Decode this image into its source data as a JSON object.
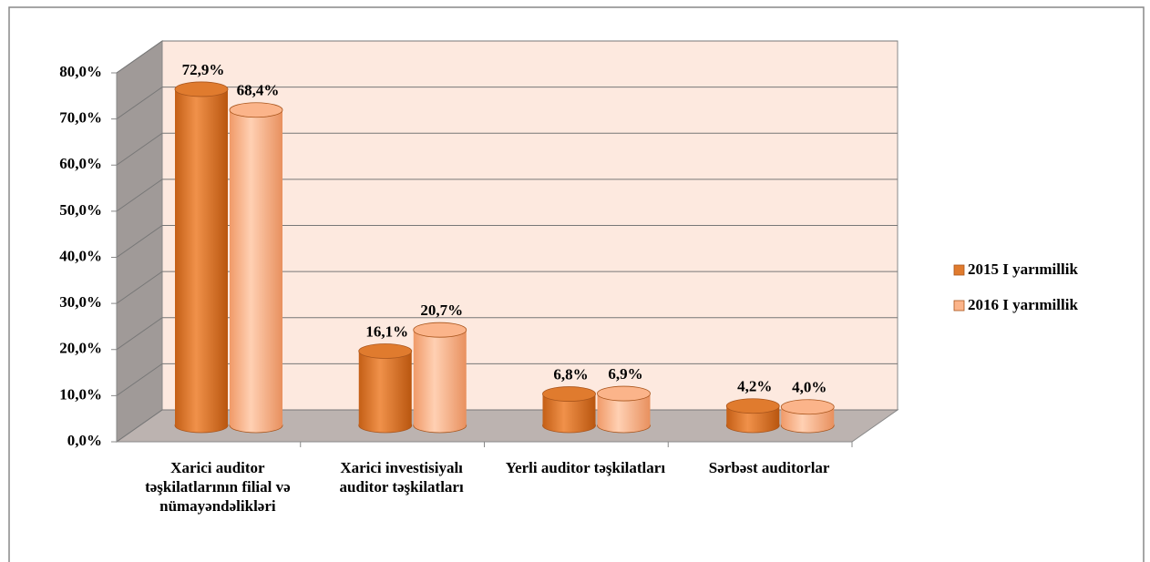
{
  "chart_data": {
    "type": "bar3d",
    "categories": [
      "Xarici auditor təşkilatlarının filial və nümayəndəlikləri",
      "Xarici investisiyalı auditor təşkilatları",
      "Yerli auditor təşkilatları",
      "Sərbəst auditorlar"
    ],
    "series": [
      {
        "name": "2015 I yarımillik",
        "color": "#e07b2e",
        "values": [
          72.9,
          16.1,
          6.8,
          4.2
        ],
        "value_labels": [
          "72,9%",
          "16,1%",
          "6,8%",
          "4,2%"
        ]
      },
      {
        "name": "2016 I yarımillik",
        "color": "#fbb48a",
        "values": [
          68.4,
          20.7,
          6.9,
          4.0
        ],
        "value_labels": [
          "68,4%",
          "20,7%",
          "6,9%",
          "4,0%"
        ]
      }
    ],
    "ylim": [
      0,
      80
    ],
    "yticks": [
      {
        "value": 0,
        "label": "0,0%"
      },
      {
        "value": 10,
        "label": "10,0%"
      },
      {
        "value": 20,
        "label": "20,0%"
      },
      {
        "value": 30,
        "label": "30,0%"
      },
      {
        "value": 40,
        "label": "40,0%"
      },
      {
        "value": 50,
        "label": "50,0%"
      },
      {
        "value": 60,
        "label": "60,0%"
      },
      {
        "value": 70,
        "label": "70,0%"
      },
      {
        "value": 80,
        "label": "80,0%"
      }
    ],
    "grid": true,
    "legend": "right"
  }
}
